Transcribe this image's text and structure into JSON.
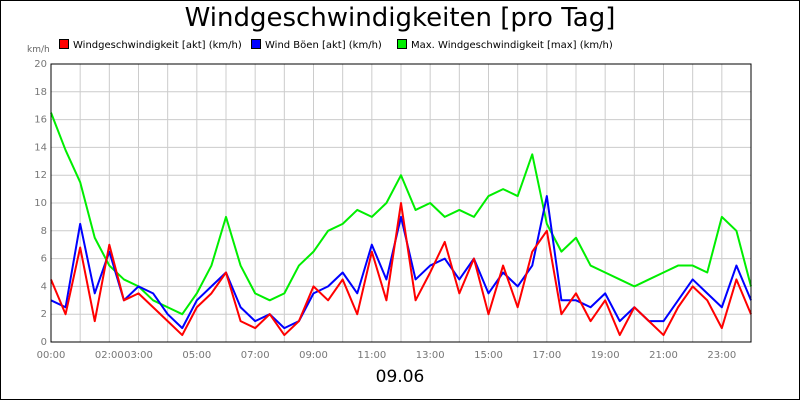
{
  "chart_data": {
    "type": "line",
    "title": "Windgeschwindigkeiten [pro Tag]",
    "ylabel": "km/h",
    "xlabel": "09.06",
    "ylim": [
      0,
      20
    ],
    "yticks": [
      "0",
      "2",
      "4",
      "6",
      "8",
      "10",
      "12",
      "14",
      "16",
      "18",
      "20"
    ],
    "xticks": [
      "00:00",
      "02:00",
      "03:00",
      "05:00",
      "07:00",
      "09:00",
      "11:00",
      "13:00",
      "15:00",
      "17:00",
      "19:00",
      "21:00",
      "23:00"
    ],
    "grid": true,
    "legend_position": "top",
    "x": [
      "00:00",
      "00:30",
      "01:00",
      "01:30",
      "02:00",
      "02:30",
      "03:00",
      "03:30",
      "04:00",
      "04:30",
      "05:00",
      "05:30",
      "06:00",
      "06:30",
      "07:00",
      "07:30",
      "08:00",
      "08:30",
      "09:00",
      "09:30",
      "10:00",
      "10:30",
      "11:00",
      "11:30",
      "12:00",
      "12:30",
      "13:00",
      "13:30",
      "14:00",
      "14:30",
      "15:00",
      "15:30",
      "16:00",
      "16:30",
      "17:00",
      "17:30",
      "18:00",
      "18:30",
      "19:00",
      "19:30",
      "20:00",
      "20:30",
      "21:00",
      "21:30",
      "22:00",
      "22:30",
      "23:00",
      "23:30",
      "24:00"
    ],
    "series": [
      {
        "name": "Windgeschwindigkeit [akt] (km/h)",
        "color": "#ff0000",
        "values": [
          4.5,
          2.0,
          6.8,
          1.5,
          7.0,
          3.0,
          3.5,
          2.5,
          1.5,
          0.5,
          2.5,
          3.5,
          5.0,
          1.5,
          1.0,
          2.0,
          0.5,
          1.5,
          4.0,
          3.0,
          4.5,
          2.0,
          6.5,
          3.0,
          10.0,
          3.0,
          5.0,
          7.2,
          3.5,
          6.0,
          2.0,
          5.5,
          2.5,
          6.5,
          8.0,
          2.0,
          3.5,
          1.5,
          3.0,
          0.5,
          2.5,
          1.5,
          0.5,
          2.5,
          4.0,
          3.0,
          1.0,
          4.5,
          2.0
        ]
      },
      {
        "name": "Wind Böen [akt] (km/h)",
        "color": "#0000ff",
        "values": [
          3.0,
          2.5,
          8.5,
          3.5,
          6.5,
          3.0,
          4.0,
          3.5,
          2.0,
          1.0,
          3.0,
          4.0,
          5.0,
          2.5,
          1.5,
          2.0,
          1.0,
          1.5,
          3.5,
          4.0,
          5.0,
          3.5,
          7.0,
          4.5,
          9.0,
          4.5,
          5.5,
          6.0,
          4.5,
          6.0,
          3.5,
          5.0,
          4.0,
          5.5,
          10.5,
          3.0,
          3.0,
          2.5,
          3.5,
          1.5,
          2.5,
          1.5,
          1.5,
          3.0,
          4.5,
          3.5,
          2.5,
          5.5,
          3.0
        ]
      },
      {
        "name": "Max. Windgeschwindigkeit [max] (km/h)",
        "color": "#00ee00",
        "values": [
          16.5,
          13.8,
          11.5,
          7.5,
          5.5,
          4.5,
          4.0,
          3.0,
          2.5,
          2.0,
          3.5,
          5.5,
          9.0,
          5.5,
          3.5,
          3.0,
          3.5,
          5.5,
          6.5,
          8.0,
          8.5,
          9.5,
          9.0,
          10.0,
          12.0,
          9.5,
          10.0,
          9.0,
          9.5,
          9.0,
          10.5,
          11.0,
          10.5,
          13.5,
          8.5,
          6.5,
          7.5,
          5.5,
          5.0,
          4.5,
          4.0,
          4.5,
          5.0,
          5.5,
          5.5,
          5.0,
          9.0,
          8.0,
          4.0
        ]
      }
    ]
  }
}
